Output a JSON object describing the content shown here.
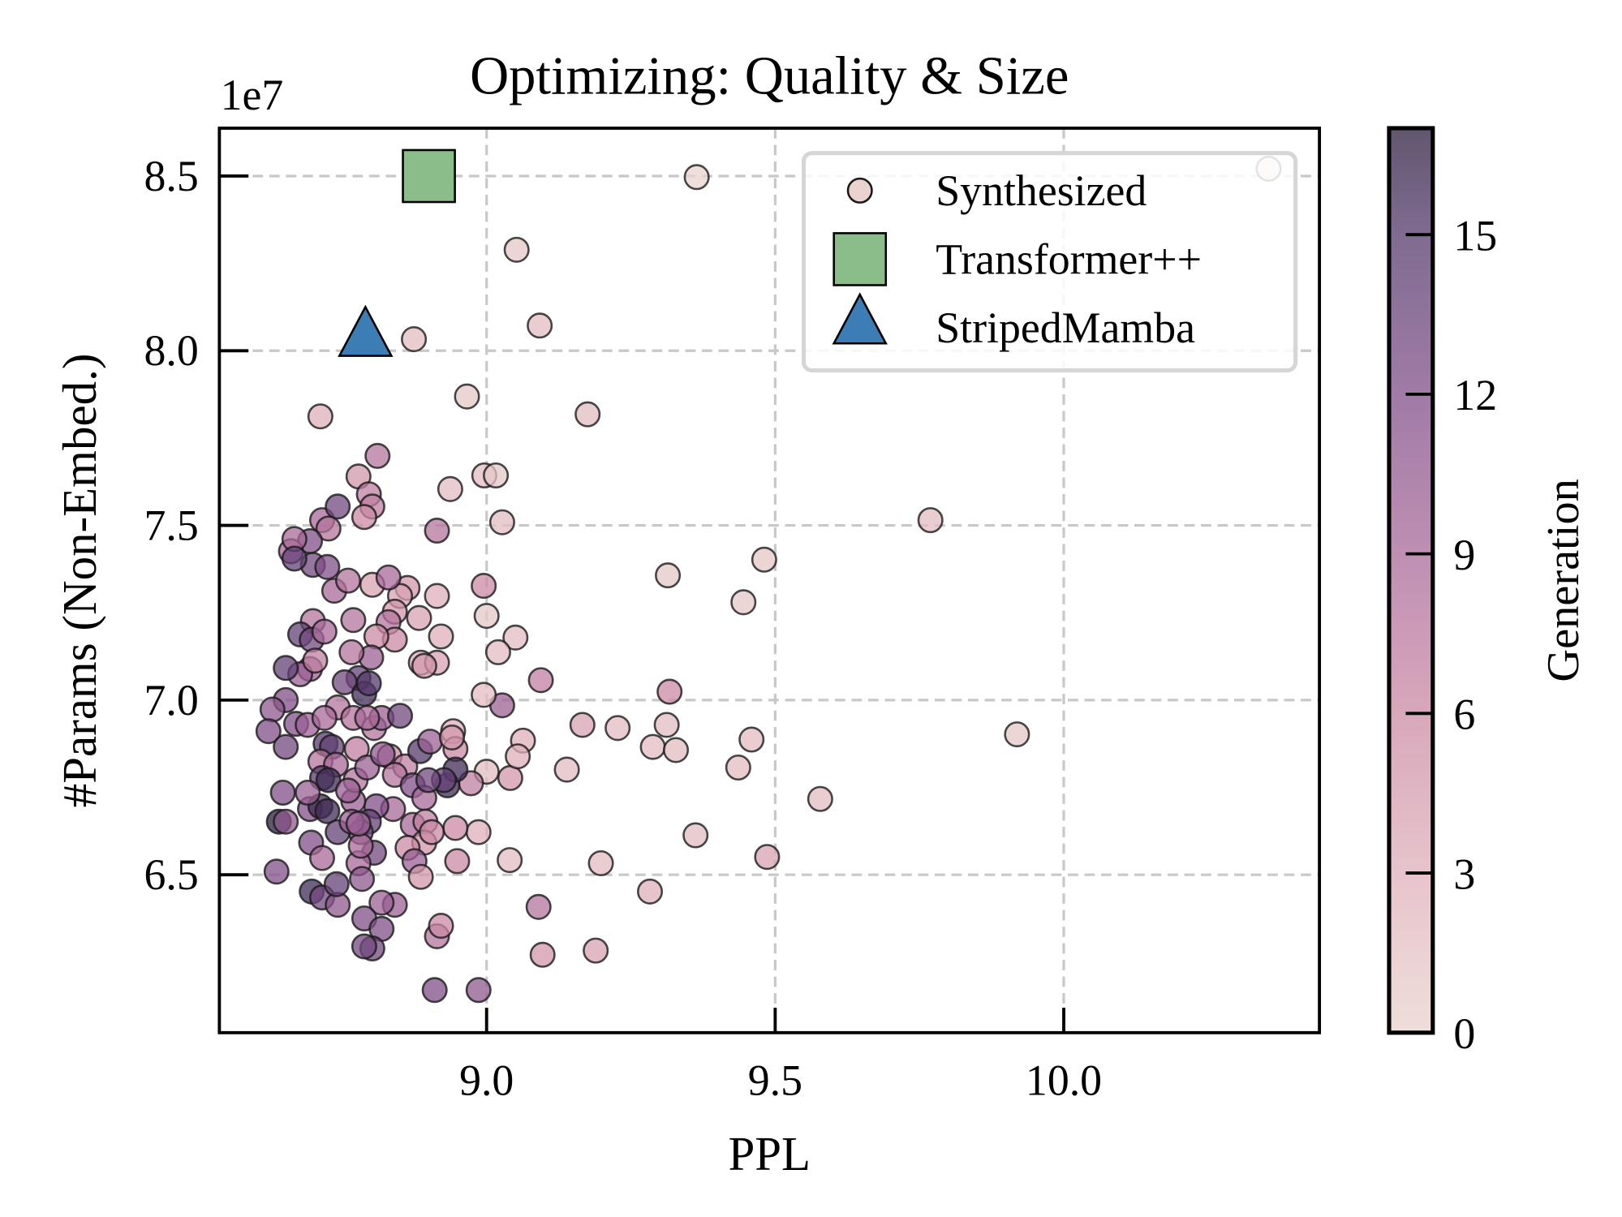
{
  "chart_data": {
    "type": "scatter",
    "title": "Optimizing: Quality & Size",
    "xlabel": "PPL",
    "ylabel": "#Params (Non-Embed.)",
    "y_offset_label": "1e7",
    "xlim": [
      8.537,
      10.443
    ],
    "ylim": [
      6.048,
      8.637
    ],
    "xticks": [
      {
        "value": 9.0,
        "label": "9.0"
      },
      {
        "value": 9.5,
        "label": "9.5"
      },
      {
        "value": 10.0,
        "label": "10.0"
      }
    ],
    "yticks": [
      {
        "value": 6.5,
        "label": "6.5"
      },
      {
        "value": 7.0,
        "label": "7.0"
      },
      {
        "value": 7.5,
        "label": "7.5"
      },
      {
        "value": 8.0,
        "label": "8.0"
      },
      {
        "value": 8.5,
        "label": "8.5"
      }
    ],
    "grid": true,
    "legend_position": "top-right",
    "legend": [
      {
        "label": "Synthesized",
        "marker": "circle"
      },
      {
        "label": "Transformer++",
        "marker": "square"
      },
      {
        "label": "StripedMamba",
        "marker": "triangle"
      }
    ],
    "colorbar": {
      "label": "Generation",
      "range": [
        0,
        17
      ],
      "ticks": [
        {
          "value": 0,
          "label": "0"
        },
        {
          "value": 3,
          "label": "3"
        },
        {
          "value": 6,
          "label": "6"
        },
        {
          "value": 9,
          "label": "9"
        },
        {
          "value": 12,
          "label": "12"
        },
        {
          "value": 15,
          "label": "15"
        }
      ],
      "colormap": [
        {
          "value": 0,
          "color": "#ead3ce"
        },
        {
          "value": 3,
          "color": "#dfb0ba"
        },
        {
          "value": 6,
          "color": "#cb8aa4"
        },
        {
          "value": 9,
          "color": "#a9699a"
        },
        {
          "value": 12,
          "color": "#804f88"
        },
        {
          "value": 15,
          "color": "#553a6c"
        },
        {
          "value": 17,
          "color": "#2d1e3e"
        }
      ]
    },
    "references": [
      {
        "name": "Transformer++",
        "marker": "square",
        "ppl": 8.9,
        "params": 8.5,
        "color": "#8bbd8b"
      },
      {
        "name": "StripedMamba",
        "marker": "triangle",
        "ppl": 8.79,
        "params": 8.03,
        "color": "#3d7db5"
      }
    ],
    "series": [
      {
        "name": "Synthesized",
        "columns": [
          "ppl",
          "params_1e7",
          "generation"
        ],
        "points": [
          [
            9.364,
            8.497,
            0
          ],
          [
            10.355,
            8.521,
            0
          ],
          [
            9.052,
            8.289,
            1
          ],
          [
            9.092,
            8.072,
            2
          ],
          [
            8.874,
            8.033,
            2
          ],
          [
            8.966,
            7.869,
            1
          ],
          [
            9.175,
            7.818,
            2
          ],
          [
            8.712,
            7.812,
            3
          ],
          [
            9.769,
            7.515,
            2
          ],
          [
            9.481,
            7.402,
            1
          ],
          [
            9.314,
            7.357,
            1
          ],
          [
            9.445,
            7.28,
            1
          ],
          [
            8.937,
            7.604,
            2
          ],
          [
            8.996,
            7.643,
            2
          ],
          [
            9.016,
            7.643,
            1
          ],
          [
            9.027,
            7.509,
            2
          ],
          [
            8.914,
            7.485,
            8
          ],
          [
            8.811,
            7.699,
            8
          ],
          [
            8.778,
            7.64,
            5
          ],
          [
            8.796,
            7.589,
            7
          ],
          [
            8.802,
            7.554,
            7
          ],
          [
            8.788,
            7.524,
            6
          ],
          [
            8.995,
            7.327,
            6
          ],
          [
            9.0,
            7.241,
            1
          ],
          [
            9.05,
            7.179,
            2
          ],
          [
            9.02,
            7.137,
            2
          ],
          [
            9.094,
            7.057,
            7
          ],
          [
            9.317,
            7.024,
            6
          ],
          [
            9.027,
            6.985,
            10
          ],
          [
            8.995,
            7.015,
            2
          ],
          [
            9.166,
            6.929,
            4
          ],
          [
            9.227,
            6.92,
            2
          ],
          [
            9.312,
            6.929,
            2
          ],
          [
            9.288,
            6.866,
            2
          ],
          [
            9.328,
            6.857,
            2
          ],
          [
            9.459,
            6.887,
            2
          ],
          [
            9.436,
            6.807,
            2
          ],
          [
            9.139,
            6.801,
            2
          ],
          [
            9.578,
            6.717,
            2
          ],
          [
            9.362,
            6.613,
            2
          ],
          [
            9.919,
            6.902,
            1
          ],
          [
            9.486,
            6.551,
            4
          ],
          [
            9.198,
            6.533,
            2
          ],
          [
            9.04,
            6.542,
            2
          ],
          [
            9.283,
            6.452,
            3
          ],
          [
            9.09,
            6.408,
            8
          ],
          [
            9.097,
            6.271,
            5
          ],
          [
            9.189,
            6.283,
            4
          ],
          [
            8.91,
            6.17,
            12
          ],
          [
            8.986,
            6.17,
            11
          ],
          [
            9.063,
            6.884,
            3
          ],
          [
            9.041,
            6.777,
            5
          ],
          [
            9.054,
            6.839,
            3
          ],
          [
            9.0,
            6.795,
            2
          ],
          [
            8.986,
            6.622,
            3
          ],
          [
            8.942,
            6.911,
            3
          ],
          [
            8.946,
            6.86,
            6
          ],
          [
            8.973,
            6.762,
            7
          ],
          [
            8.946,
            6.634,
            6
          ],
          [
            8.949,
            6.539,
            6
          ],
          [
            8.921,
            7.182,
            3
          ],
          [
            8.914,
            7.298,
            3
          ],
          [
            8.886,
            7.107,
            3
          ],
          [
            8.914,
            7.107,
            4
          ],
          [
            8.883,
            7.235,
            4
          ],
          [
            8.892,
            7.098,
            5
          ],
          [
            8.863,
            7.321,
            5
          ],
          [
            8.85,
            7.298,
            4
          ],
          [
            8.802,
            7.33,
            4
          ],
          [
            8.83,
            7.351,
            9
          ],
          [
            8.841,
            7.253,
            5
          ],
          [
            8.83,
            7.223,
            8
          ],
          [
            8.841,
            7.173,
            6
          ],
          [
            8.809,
            7.182,
            6
          ],
          [
            8.769,
            7.229,
            8
          ],
          [
            8.8,
            7.122,
            10
          ],
          [
            8.766,
            7.137,
            8
          ],
          [
            8.778,
            7.063,
            14
          ],
          [
            8.754,
            7.051,
            13
          ],
          [
            8.788,
            7.018,
            16
          ],
          [
            8.796,
            7.048,
            15
          ],
          [
            8.742,
            6.979,
            8
          ],
          [
            8.769,
            6.949,
            8
          ],
          [
            8.805,
            6.92,
            8
          ],
          [
            8.818,
            6.949,
            10
          ],
          [
            8.85,
            6.955,
            13
          ],
          [
            8.775,
            6.86,
            7
          ],
          [
            8.832,
            6.839,
            6
          ],
          [
            8.859,
            6.81,
            7
          ],
          [
            8.841,
            6.786,
            8
          ],
          [
            8.885,
            6.854,
            15
          ],
          [
            8.902,
            6.881,
            10
          ],
          [
            8.872,
            6.756,
            12
          ],
          [
            8.892,
            6.72,
            9
          ],
          [
            8.872,
            6.643,
            9
          ],
          [
            8.894,
            6.652,
            7
          ],
          [
            8.892,
            6.592,
            5
          ],
          [
            8.905,
            6.622,
            6
          ],
          [
            8.863,
            6.577,
            6
          ],
          [
            8.875,
            6.539,
            10
          ],
          [
            8.886,
            6.494,
            5
          ],
          [
            8.838,
            6.688,
            9
          ],
          [
            8.809,
            6.696,
            12
          ],
          [
            8.796,
            6.652,
            14
          ],
          [
            8.782,
            6.622,
            12
          ],
          [
            8.769,
            6.711,
            10
          ],
          [
            8.773,
            6.771,
            8
          ],
          [
            8.793,
            6.807,
            10
          ],
          [
            8.805,
            6.563,
            13
          ],
          [
            8.778,
            6.533,
            9
          ],
          [
            8.784,
            6.488,
            11
          ],
          [
            8.841,
            6.414,
            10
          ],
          [
            8.818,
            6.42,
            10
          ],
          [
            8.788,
            6.375,
            12
          ],
          [
            8.818,
            6.345,
            12
          ],
          [
            8.802,
            6.289,
            13
          ],
          [
            8.788,
            6.295,
            13
          ],
          [
            8.914,
            6.324,
            8
          ],
          [
            8.921,
            6.354,
            6
          ],
          [
            8.932,
            6.756,
            16
          ],
          [
            8.946,
            6.801,
            16
          ],
          [
            8.926,
            6.771,
            14
          ],
          [
            8.715,
            7.515,
            9
          ],
          [
            8.742,
            7.554,
            13
          ],
          [
            8.726,
            7.491,
            8
          ],
          [
            8.694,
            7.455,
            12
          ],
          [
            8.661,
            7.426,
            9
          ],
          [
            8.667,
            7.461,
            9
          ],
          [
            8.699,
            7.387,
            13
          ],
          [
            8.667,
            7.405,
            14
          ],
          [
            8.724,
            7.381,
            12
          ],
          [
            8.736,
            7.313,
            9
          ],
          [
            8.76,
            7.342,
            8
          ],
          [
            8.699,
            7.226,
            8
          ],
          [
            8.677,
            7.188,
            14
          ],
          [
            8.697,
            7.173,
            13
          ],
          [
            8.719,
            7.196,
            9
          ],
          [
            8.694,
            7.089,
            10
          ],
          [
            8.677,
            7.074,
            10
          ],
          [
            8.652,
            7.092,
            14
          ],
          [
            8.703,
            7.113,
            7
          ],
          [
            8.652,
            7.0,
            12
          ],
          [
            8.629,
            6.973,
            11
          ],
          [
            8.622,
            6.911,
            12
          ],
          [
            8.67,
            6.932,
            12
          ],
          [
            8.652,
            6.866,
            13
          ],
          [
            8.69,
            6.929,
            10
          ],
          [
            8.719,
            6.949,
            9
          ],
          [
            8.721,
            6.875,
            15
          ],
          [
            8.732,
            6.866,
            14
          ],
          [
            8.712,
            6.824,
            8
          ],
          [
            8.739,
            6.815,
            9
          ],
          [
            8.715,
            6.777,
            15
          ],
          [
            8.726,
            6.771,
            16
          ],
          [
            8.694,
            6.688,
            12
          ],
          [
            8.712,
            6.696,
            16
          ],
          [
            8.724,
            6.682,
            16
          ],
          [
            8.742,
            6.622,
            14
          ],
          [
            8.696,
            6.592,
            12
          ],
          [
            8.715,
            6.548,
            9
          ],
          [
            8.647,
            6.735,
            12
          ],
          [
            8.64,
            6.652,
            17
          ],
          [
            8.652,
            6.652,
            11
          ],
          [
            8.636,
            6.509,
            12
          ],
          [
            8.697,
            6.452,
            16
          ],
          [
            8.715,
            6.435,
            13
          ],
          [
            8.742,
            6.414,
            11
          ],
          [
            8.74,
            6.473,
            14
          ],
          [
            8.76,
            6.741,
            10
          ],
          [
            8.766,
            6.652,
            10
          ],
          [
            8.782,
            6.583,
            9
          ],
          [
            8.778,
            6.646,
            10
          ],
          [
            8.793,
            6.949,
            9
          ],
          [
            8.82,
            6.845,
            11
          ],
          [
            8.899,
            6.771,
            13
          ],
          [
            8.94,
            6.893,
            5
          ],
          [
            8.69,
            6.735,
            10
          ]
        ]
      }
    ]
  }
}
